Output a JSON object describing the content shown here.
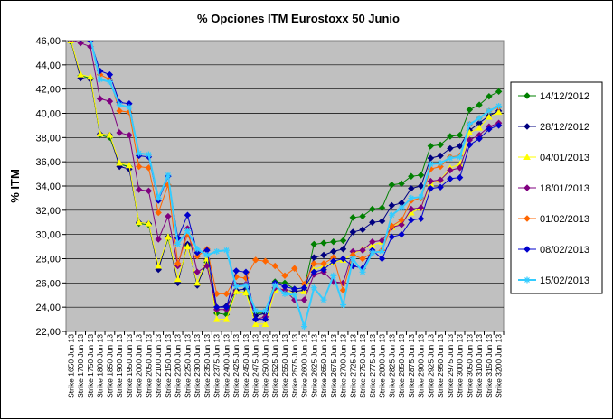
{
  "chart_data": {
    "type": "line",
    "title": "% Opciones ITM Eurostoxx 50 Junio",
    "ylabel": "% ITM",
    "xlabel": "",
    "ylim": [
      22,
      46
    ],
    "yticks": [
      "22,00",
      "24,00",
      "26,00",
      "28,00",
      "30,00",
      "32,00",
      "34,00",
      "36,00",
      "38,00",
      "40,00",
      "42,00",
      "44,00",
      "46,00"
    ],
    "grid": "horizontal",
    "plot_background": "#c0c0c0",
    "legend_position": "right",
    "categories": [
      "Strike 1650 Jun 13",
      "Strike 1700 Jun 13",
      "Strike 1750 Jun 13",
      "Strike 1800 Jun 13",
      "Strike 1850 Jun 13",
      "Strike 1900 Jun 13",
      "Strike 1950 Jun 13",
      "Strike 2000 Jun 13",
      "Strike 2050 Jun 13",
      "Strike 2100 Jun 13",
      "Strike 2150 Jun 13",
      "Strike 2200 Jun 13",
      "Strike 2250 Jun 13",
      "Strike 2300 Jun 13",
      "Strike 2350 Jun 13",
      "Strike 2375 Jun 13",
      "Strike 2400 Jun 13",
      "Strike 2425 Jun 13",
      "Strike 2450 Jun 13",
      "Strike 2475 Jun 13",
      "Strike 2500 Jun 13",
      "Strike 2525 Jun 13",
      "Strike 2550 Jun 13",
      "Strike 2575 Jun 13",
      "Strike 2600 Jun 13",
      "Strike 2625 Jun 13",
      "Strike 2650 Jun 13",
      "Strike 2675 Jun 13",
      "Strike 2700 Jun 13",
      "Strike 2725 Jun 13",
      "Strike 2750 Jun 13",
      "Strike 2775 Jun 13",
      "Strike 2800 Jun 13",
      "Strike 2825 Jun 13",
      "Strike 2850 Jun 13",
      "Strike 2875 Jun 13",
      "Strike 2900 Jun 13",
      "Strike 2925 Jun 13",
      "Strike 2950 Jun 13",
      "Strike 2975 Jun 13",
      "Strike 3000 Jun 13",
      "Strike 3050 Jun 13",
      "Strike 3100 Jun 13",
      "Strike 3150 Jun 13",
      "Strike 3200 Jun 13"
    ],
    "series": [
      {
        "name": "14/12/2012",
        "color": "#008000",
        "marker": "diamond",
        "values": [
          45.9,
          43.1,
          42.9,
          38.2,
          38.0,
          35.8,
          35.6,
          30.9,
          30.8,
          27.2,
          29.7,
          26.1,
          29.1,
          25.9,
          27.7,
          23.5,
          23.4,
          25.3,
          25.2,
          23.5,
          23.5,
          26.1,
          26.0,
          25.5,
          25.6,
          29.2,
          29.3,
          29.4,
          29.5,
          31.4,
          31.5,
          32.1,
          32.2,
          34.1,
          34.2,
          34.8,
          34.9,
          37.3,
          37.4,
          38.1,
          38.2,
          40.3,
          40.7,
          41.4,
          41.8
        ]
      },
      {
        "name": "28/12/2012",
        "color": "#000080",
        "marker": "diamond",
        "values": [
          46.0,
          42.9,
          42.8,
          38.3,
          38.2,
          35.6,
          35.4,
          31.0,
          30.9,
          27.1,
          29.8,
          26.0,
          29.2,
          25.8,
          27.9,
          24.0,
          24.1,
          25.4,
          25.5,
          23.3,
          23.5,
          25.6,
          25.4,
          25.3,
          25.4,
          28.1,
          28.3,
          28.6,
          28.8,
          30.2,
          30.4,
          31.0,
          31.1,
          32.4,
          32.6,
          33.8,
          34.0,
          36.3,
          36.5,
          37.1,
          37.3,
          38.6,
          39.2,
          39.8,
          40.2
        ]
      },
      {
        "name": "04/01/2013",
        "color": "#ffff00",
        "marker": "triangle",
        "values": [
          46.0,
          43.2,
          43.0,
          38.3,
          38.2,
          35.9,
          35.7,
          31.0,
          30.9,
          27.4,
          29.8,
          26.3,
          29.0,
          26.0,
          28.0,
          23.0,
          23.0,
          25.3,
          25.2,
          22.6,
          22.6,
          25.4,
          25.5,
          25.1,
          25.3,
          27.1,
          27.4,
          27.7,
          27.9,
          28.4,
          28.8,
          29.1,
          29.4,
          30.6,
          31.0,
          31.8,
          32.2,
          34.2,
          34.5,
          35.5,
          35.8,
          38.4,
          38.8,
          39.7,
          40.1
        ]
      },
      {
        "name": "18/01/2013",
        "color": "#800080",
        "marker": "diamond",
        "values": [
          46.1,
          45.8,
          45.5,
          41.2,
          41.0,
          38.4,
          38.2,
          33.7,
          33.6,
          29.6,
          31.5,
          27.4,
          30.5,
          26.9,
          27.4,
          23.8,
          23.8,
          25.8,
          25.9,
          23.0,
          23.2,
          25.6,
          25.4,
          24.6,
          24.6,
          26.7,
          26.9,
          26.1,
          26.0,
          28.6,
          28.7,
          29.4,
          29.5,
          30.6,
          30.8,
          32.1,
          32.2,
          34.4,
          34.5,
          35.3,
          35.5,
          37.8,
          38.2,
          38.9,
          39.2
        ]
      },
      {
        "name": "01/02/2013",
        "color": "#ff6600",
        "marker": "diamond",
        "values": [
          46.2,
          46.3,
          46.1,
          43.2,
          42.8,
          40.2,
          40.1,
          35.6,
          35.5,
          31.8,
          34.1,
          27.6,
          30.0,
          28.2,
          28.8,
          25.1,
          25.1,
          26.5,
          26.4,
          27.9,
          27.8,
          27.4,
          26.6,
          27.2,
          25.9,
          27.6,
          27.6,
          28.1,
          25.4,
          28.3,
          28.0,
          28.5,
          28.7,
          30.7,
          31.2,
          32.8,
          33.0,
          35.4,
          35.6,
          36.4,
          36.5,
          39.1,
          39.6,
          40.2,
          40.5
        ]
      },
      {
        "name": "08/02/2013",
        "color": "#0000cc",
        "marker": "diamond",
        "values": [
          46.3,
          46.2,
          46.0,
          43.5,
          43.2,
          40.9,
          40.8,
          36.5,
          36.4,
          32.8,
          34.8,
          29.7,
          31.6,
          28.5,
          28.7,
          24.0,
          24.0,
          27.0,
          26.9,
          23.0,
          23.0,
          26.0,
          25.7,
          25.5,
          25.6,
          26.9,
          27.1,
          27.8,
          28.0,
          27.4,
          27.2,
          28.7,
          28.0,
          29.8,
          30.0,
          31.2,
          31.3,
          33.8,
          33.9,
          34.6,
          34.7,
          37.4,
          37.9,
          38.7,
          39.0
        ]
      },
      {
        "name": "15/02/2013",
        "color": "#33ccff",
        "marker": "star",
        "values": [
          46.4,
          46.3,
          46.2,
          42.8,
          42.6,
          40.7,
          40.5,
          36.7,
          36.6,
          33.0,
          34.9,
          29.2,
          30.3,
          28.8,
          28.3,
          28.6,
          28.7,
          25.7,
          25.8,
          23.7,
          23.7,
          25.8,
          25.1,
          25.0,
          22.4,
          25.6,
          24.6,
          26.6,
          24.2,
          28.0,
          26.9,
          28.5,
          28.6,
          31.6,
          32.2,
          33.0,
          33.1,
          35.8,
          35.9,
          36.3,
          36.4,
          39.1,
          39.6,
          40.2,
          40.6
        ]
      }
    ]
  }
}
